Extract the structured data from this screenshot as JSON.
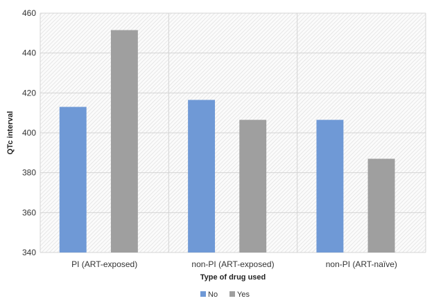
{
  "chart_data": {
    "type": "bar",
    "title": "",
    "xlabel": "Type of drug used",
    "ylabel": "QTc interval",
    "ylim": [
      340,
      460
    ],
    "yticks": [
      340,
      360,
      380,
      400,
      420,
      440,
      460
    ],
    "categories": [
      "PI (ART-exposed)",
      "non-PI (ART-exposed)",
      "non-PI (ART-naïve)"
    ],
    "series": [
      {
        "name": "No",
        "values": [
          413,
          416.5,
          406.5
        ],
        "color": "#6f99d6"
      },
      {
        "name": "Yes",
        "values": [
          451.5,
          406.5,
          387
        ],
        "color": "#9f9f9f"
      }
    ],
    "grid": true,
    "legend_position": "bottom-center",
    "background": "hatched-gray"
  }
}
